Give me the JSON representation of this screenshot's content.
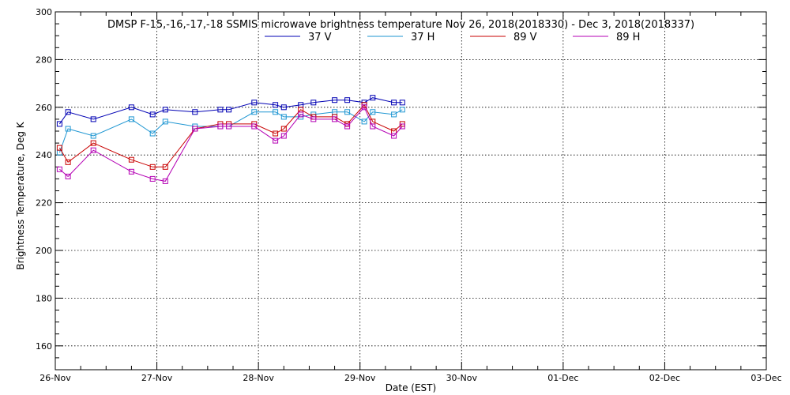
{
  "chart_data": {
    "type": "line",
    "title": "DMSP F-15,-16,-17,-18 SSMIS microwave brightness temperature Nov 26, 2018(2018330) - Dec  3, 2018(2018337)",
    "xlabel": "Date (EST)",
    "ylabel": "Brightness Temperature, Deg K",
    "xlim": [
      "2018-11-26",
      "2018-12-03"
    ],
    "ylim": [
      150,
      300
    ],
    "x_ticks": [
      "26-Nov",
      "27-Nov",
      "28-Nov",
      "29-Nov",
      "30-Nov",
      "01-Dec",
      "02-Dec",
      "03-Dec"
    ],
    "y_ticks": [
      160,
      180,
      200,
      220,
      240,
      260,
      280,
      300
    ],
    "grid": true,
    "legend_position": "top",
    "series": [
      {
        "name": "37 V",
        "color": "#0000b4",
        "points": [
          [
            "2018-11-26 01:00",
            253
          ],
          [
            "2018-11-26 03:00",
            258
          ],
          [
            "2018-11-26 09:00",
            255
          ],
          [
            "2018-11-26 18:00",
            260
          ],
          [
            "2018-11-26 23:00",
            257
          ],
          [
            "2018-11-27 02:00",
            259
          ],
          [
            "2018-11-27 09:00",
            258
          ],
          [
            "2018-11-27 15:00",
            259
          ],
          [
            "2018-11-27 17:00",
            259
          ],
          [
            "2018-11-27 23:00",
            262
          ],
          [
            "2018-11-28 04:00",
            261
          ],
          [
            "2018-11-28 06:00",
            260
          ],
          [
            "2018-11-28 10:00",
            261
          ],
          [
            "2018-11-28 13:00",
            262
          ],
          [
            "2018-11-28 18:00",
            263
          ],
          [
            "2018-11-28 21:00",
            263
          ],
          [
            "2018-11-29 01:00",
            262
          ],
          [
            "2018-11-29 03:00",
            264
          ],
          [
            "2018-11-29 08:00",
            262
          ],
          [
            "2018-11-29 10:00",
            262
          ]
        ]
      },
      {
        "name": "37 H",
        "color": "#1e96d2",
        "points": [
          [
            "2018-11-26 01:00",
            241
          ],
          [
            "2018-11-26 03:00",
            251
          ],
          [
            "2018-11-26 09:00",
            248
          ],
          [
            "2018-11-26 18:00",
            255
          ],
          [
            "2018-11-26 23:00",
            249
          ],
          [
            "2018-11-27 02:00",
            254
          ],
          [
            "2018-11-27 09:00",
            252
          ],
          [
            "2018-11-27 15:00",
            252
          ],
          [
            "2018-11-27 17:00",
            252
          ],
          [
            "2018-11-27 23:00",
            258
          ],
          [
            "2018-11-28 04:00",
            258
          ],
          [
            "2018-11-28 06:00",
            256
          ],
          [
            "2018-11-28 10:00",
            256
          ],
          [
            "2018-11-28 13:00",
            257
          ],
          [
            "2018-11-28 18:00",
            258
          ],
          [
            "2018-11-28 21:00",
            258
          ],
          [
            "2018-11-29 01:00",
            254
          ],
          [
            "2018-11-29 03:00",
            258
          ],
          [
            "2018-11-29 08:00",
            257
          ],
          [
            "2018-11-29 10:00",
            259
          ]
        ]
      },
      {
        "name": "89 V",
        "color": "#c80000",
        "points": [
          [
            "2018-11-26 01:00",
            243
          ],
          [
            "2018-11-26 03:00",
            237
          ],
          [
            "2018-11-26 09:00",
            245
          ],
          [
            "2018-11-26 18:00",
            238
          ],
          [
            "2018-11-26 23:00",
            235
          ],
          [
            "2018-11-27 02:00",
            235
          ],
          [
            "2018-11-27 09:00",
            251
          ],
          [
            "2018-11-27 15:00",
            253
          ],
          [
            "2018-11-27 17:00",
            253
          ],
          [
            "2018-11-27 23:00",
            253
          ],
          [
            "2018-11-28 04:00",
            249
          ],
          [
            "2018-11-28 06:00",
            251
          ],
          [
            "2018-11-28 10:00",
            259
          ],
          [
            "2018-11-28 13:00",
            256
          ],
          [
            "2018-11-28 18:00",
            256
          ],
          [
            "2018-11-28 21:00",
            253
          ],
          [
            "2018-11-29 01:00",
            261
          ],
          [
            "2018-11-29 03:00",
            254
          ],
          [
            "2018-11-29 08:00",
            250
          ],
          [
            "2018-11-29 10:00",
            253
          ]
        ]
      },
      {
        "name": "89 H",
        "color": "#b400b4",
        "points": [
          [
            "2018-11-26 01:00",
            234
          ],
          [
            "2018-11-26 03:00",
            231
          ],
          [
            "2018-11-26 09:00",
            242
          ],
          [
            "2018-11-26 18:00",
            233
          ],
          [
            "2018-11-26 23:00",
            230
          ],
          [
            "2018-11-27 02:00",
            229
          ],
          [
            "2018-11-27 09:00",
            251
          ],
          [
            "2018-11-27 15:00",
            252
          ],
          [
            "2018-11-27 17:00",
            252
          ],
          [
            "2018-11-27 23:00",
            252
          ],
          [
            "2018-11-28 04:00",
            246
          ],
          [
            "2018-11-28 06:00",
            248
          ],
          [
            "2018-11-28 10:00",
            257
          ],
          [
            "2018-11-28 13:00",
            255
          ],
          [
            "2018-11-28 18:00",
            255
          ],
          [
            "2018-11-28 21:00",
            252
          ],
          [
            "2018-11-29 01:00",
            260
          ],
          [
            "2018-11-29 03:00",
            252
          ],
          [
            "2018-11-29 08:00",
            248
          ],
          [
            "2018-11-29 10:00",
            252
          ]
        ]
      }
    ]
  }
}
